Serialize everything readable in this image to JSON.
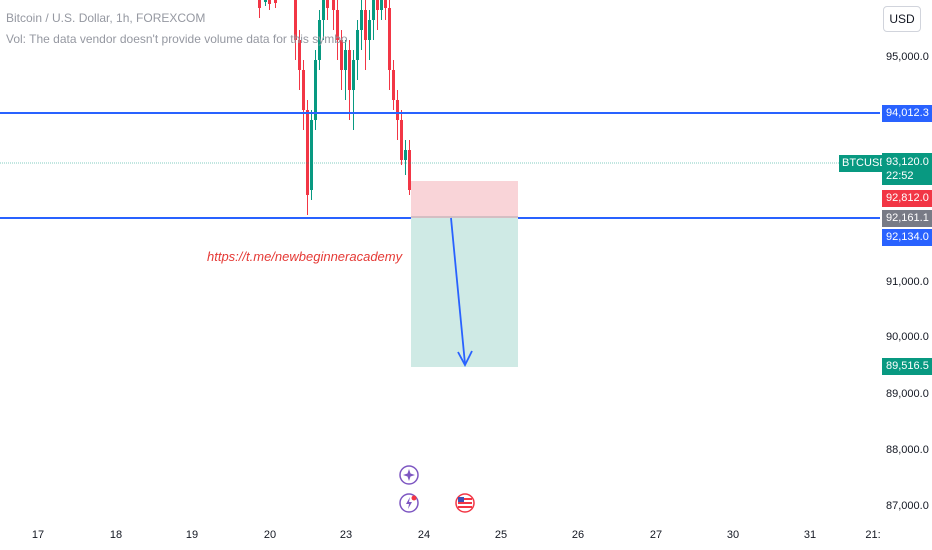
{
  "header": {
    "symbol_line": "Bitcoin / U.S. Dollar, 1h, FOREXCOM",
    "volume_note": "Vol: The data vendor doesn't provide volume data for this symbo"
  },
  "currency_button": "USD",
  "price_axis": {
    "labels": [
      {
        "value": 95000,
        "text": "95,000.0"
      },
      {
        "value": 91000,
        "text": "91,000.0"
      },
      {
        "value": 90000,
        "text": "90,000.0"
      },
      {
        "value": 89000,
        "text": "89,000.0"
      },
      {
        "value": 88000,
        "text": "88,000.0"
      },
      {
        "value": 87000,
        "text": "87,000.0"
      }
    ],
    "tags": {
      "resistance": "94,012.3",
      "last_price": "93,120.0",
      "countdown": "22:52",
      "short_stop": "92,812.0",
      "short_entry": "92,161.1",
      "support": "92,134.0",
      "short_target": "89,516.5"
    },
    "symbol_tag": "BTCUSD"
  },
  "time_axis": {
    "labels": [
      "17",
      "18",
      "19",
      "20",
      "23",
      "24",
      "25",
      "26",
      "27",
      "30",
      "31",
      "21:"
    ]
  },
  "annotation_link": "https://t.me/newbeginneracademy",
  "colors": {
    "up": "#089981",
    "down": "#f23645",
    "level_line": "#2962ff",
    "stop_zone": "#f9d4d8",
    "target_zone": "#cfeae5"
  },
  "chart_data": {
    "type": "candlestick",
    "symbol": "BTCUSD",
    "levels": [
      94012.3,
      92134.0
    ],
    "last_price": 93120.0,
    "short_position": {
      "entry": 92161.1,
      "stop": 92812.0,
      "target": 89516.5
    },
    "ylim": [
      86700,
      95700
    ],
    "events": [
      "star-event-icon",
      "earnings-event-icon",
      "us-flag-event-icon"
    ]
  }
}
